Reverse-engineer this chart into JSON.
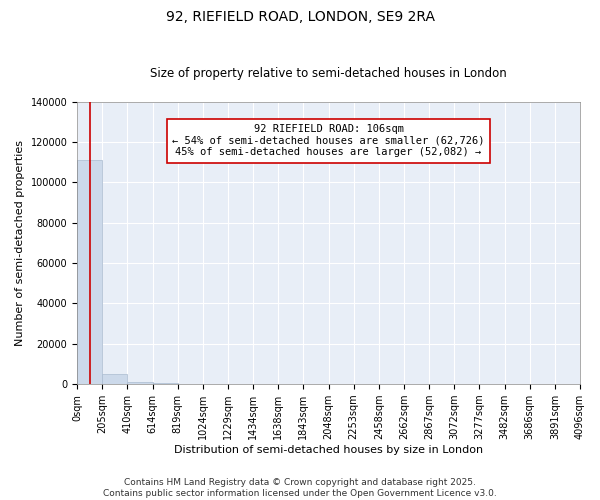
{
  "title": "92, RIEFIELD ROAD, LONDON, SE9 2RA",
  "subtitle": "Size of property relative to semi-detached houses in London",
  "xlabel": "Distribution of semi-detached houses by size in London",
  "ylabel": "Number of semi-detached properties",
  "annotation_title": "92 RIEFIELD ROAD: 106sqm",
  "annotation_line1": "← 54% of semi-detached houses are smaller (62,726)",
  "annotation_line2": "45% of semi-detached houses are larger (52,082) →",
  "property_size": 106,
  "bar_color": "#ccd9ea",
  "bar_edge_color": "#aabbd0",
  "vline_color": "#cc0000",
  "annotation_box_color": "#ffffff",
  "annotation_box_edge": "#cc0000",
  "plot_bg_color": "#e8eef7",
  "fig_bg_color": "#ffffff",
  "grid_color": "#ffffff",
  "ylim": [
    0,
    140000
  ],
  "yticks": [
    0,
    20000,
    40000,
    60000,
    80000,
    100000,
    120000,
    140000
  ],
  "bin_edges": [
    0,
    205,
    410,
    614,
    819,
    1024,
    1229,
    1434,
    1638,
    1843,
    2048,
    2253,
    2458,
    2662,
    2867,
    3072,
    3277,
    3482,
    3686,
    3891,
    4096
  ],
  "bin_labels": [
    "0sqm",
    "205sqm",
    "410sqm",
    "614sqm",
    "819sqm",
    "1024sqm",
    "1229sqm",
    "1434sqm",
    "1638sqm",
    "1843sqm",
    "2048sqm",
    "2253sqm",
    "2458sqm",
    "2662sqm",
    "2867sqm",
    "3072sqm",
    "3277sqm",
    "3482sqm",
    "3686sqm",
    "3891sqm",
    "4096sqm"
  ],
  "bar_heights": [
    111000,
    5000,
    1200,
    400,
    150,
    80,
    50,
    30,
    20,
    15,
    10,
    8,
    7,
    6,
    5,
    4,
    4,
    3,
    3,
    2
  ],
  "footer_line1": "Contains HM Land Registry data © Crown copyright and database right 2025.",
  "footer_line2": "Contains public sector information licensed under the Open Government Licence v3.0.",
  "title_fontsize": 10,
  "subtitle_fontsize": 8.5,
  "axis_label_fontsize": 8,
  "tick_fontsize": 7,
  "annotation_fontsize": 7.5,
  "footer_fontsize": 6.5
}
